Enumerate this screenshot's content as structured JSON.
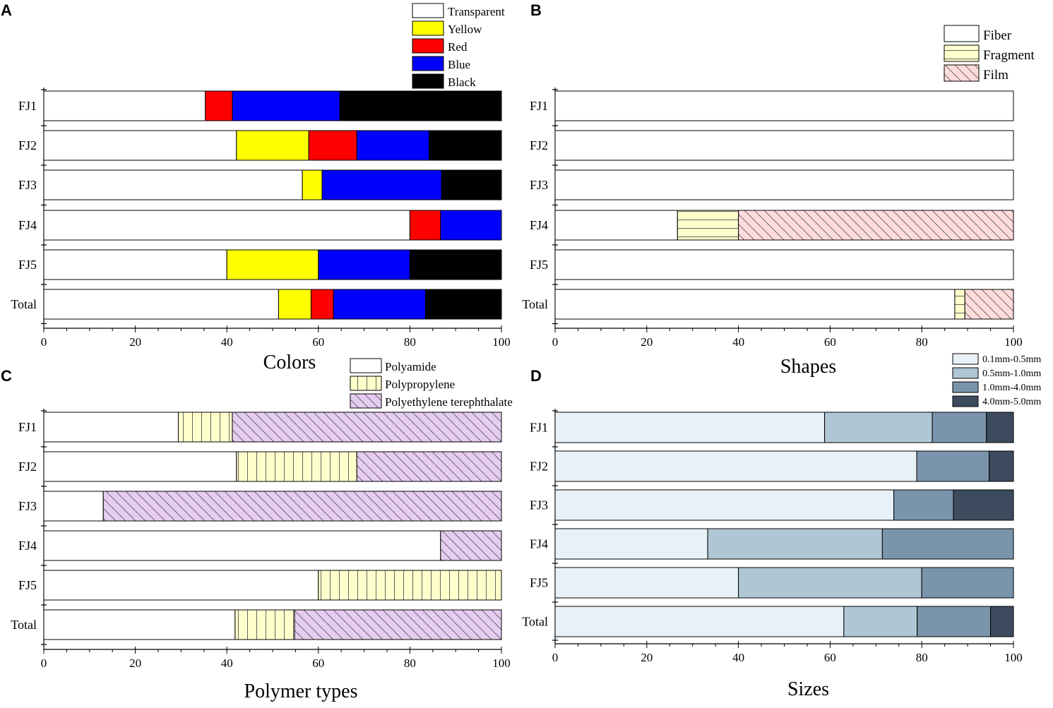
{
  "chart_data": [
    {
      "panel_letter": "A",
      "type": "bar",
      "orientation": "horizontal",
      "stacked": true,
      "xlabel": "Colors",
      "xlim": [
        0,
        100
      ],
      "xticks": [
        "0",
        "20",
        "40",
        "60",
        "80",
        "100"
      ],
      "categories": [
        "FJ1",
        "FJ2",
        "FJ3",
        "FJ4",
        "FJ5",
        "Total"
      ],
      "legend_position": "top-right",
      "series": [
        {
          "name": "Transparent",
          "color": "#ffffff",
          "pattern": "none",
          "values": [
            35.3,
            42.1,
            56.5,
            80.0,
            40.0,
            51.3
          ]
        },
        {
          "name": "Yellow",
          "color": "#ffff00",
          "pattern": "none",
          "values": [
            0,
            15.8,
            4.3,
            0,
            20.0,
            7.1
          ]
        },
        {
          "name": "Red",
          "color": "#ff0000",
          "pattern": "none",
          "values": [
            5.9,
            10.5,
            0,
            6.7,
            0,
            4.9
          ]
        },
        {
          "name": "Blue",
          "color": "#0000ff",
          "pattern": "none",
          "values": [
            23.5,
            15.8,
            26.1,
            13.3,
            20.0,
            20.1
          ]
        },
        {
          "name": "Black",
          "color": "#000000",
          "pattern": "none",
          "values": [
            35.3,
            15.8,
            13.1,
            0,
            20.0,
            16.6
          ]
        }
      ]
    },
    {
      "panel_letter": "B",
      "type": "bar",
      "orientation": "horizontal",
      "stacked": true,
      "xlabel": "Shapes",
      "xlim": [
        0,
        100
      ],
      "xticks": [
        "0",
        "20",
        "40",
        "60",
        "80",
        "100"
      ],
      "categories": [
        "FJ1",
        "FJ2",
        "FJ3",
        "FJ4",
        "FJ5",
        "Total"
      ],
      "legend_position": "top-right",
      "series": [
        {
          "name": "Fiber",
          "color": "#ffffff",
          "pattern": "none",
          "values": [
            100,
            100,
            100,
            26.7,
            100,
            87.2
          ]
        },
        {
          "name": "Fragment",
          "color": "#ffffcc",
          "pattern": "horizontal",
          "values": [
            0,
            0,
            0,
            13.3,
            0,
            2.2
          ]
        },
        {
          "name": "Film",
          "color": "#ffdcdc",
          "pattern": "diagonal",
          "values": [
            0,
            0,
            0,
            60.0,
            0,
            10.6
          ]
        }
      ]
    },
    {
      "panel_letter": "C",
      "type": "bar",
      "orientation": "horizontal",
      "stacked": true,
      "xlabel": "Polymer types",
      "xlim": [
        0,
        100
      ],
      "xticks": [
        "0",
        "20",
        "40",
        "60",
        "80",
        "100"
      ],
      "categories": [
        "FJ1",
        "FJ2",
        "FJ3",
        "FJ4",
        "FJ5",
        "Total"
      ],
      "legend_position": "top-right",
      "series": [
        {
          "name": "Polyamide",
          "color": "#ffffff",
          "pattern": "none",
          "values": [
            29.4,
            42.1,
            13.0,
            86.7,
            60.0,
            41.8
          ]
        },
        {
          "name": "Polypropylene",
          "color": "#ffffcc",
          "pattern": "vertical",
          "values": [
            11.8,
            26.3,
            0,
            0,
            40.0,
            13.0
          ]
        },
        {
          "name": "Polyethylene terephthalate",
          "color": "#e6ccf0",
          "pattern": "diagonal",
          "values": [
            58.8,
            31.6,
            87.0,
            13.3,
            0,
            45.2
          ]
        }
      ]
    },
    {
      "panel_letter": "D",
      "type": "bar",
      "orientation": "horizontal",
      "stacked": true,
      "xlabel": "Sizes",
      "xlim": [
        0,
        100
      ],
      "xticks": [
        "0",
        "20",
        "40",
        "60",
        "80",
        "100"
      ],
      "categories": [
        "FJ1",
        "FJ2",
        "FJ3",
        "FJ4",
        "FJ5",
        "Total"
      ],
      "legend_position": "top-right",
      "series": [
        {
          "name": "0.1mm-0.5mm",
          "color": "#e8f0f8",
          "pattern": "none",
          "values": [
            58.8,
            78.9,
            73.9,
            33.3,
            40.0,
            63.0
          ]
        },
        {
          "name": "0.5mm-1.0mm",
          "color": "#afc6d4",
          "pattern": "none",
          "values": [
            23.5,
            0,
            0,
            38.1,
            40.0,
            16.0
          ]
        },
        {
          "name": "1.0mm-4.0mm",
          "color": "#7a94ac",
          "pattern": "none",
          "values": [
            11.8,
            15.8,
            13.0,
            28.6,
            20.0,
            16.0
          ]
        },
        {
          "name": "4.0mm-5.0mm",
          "color": "#3c4b5e",
          "pattern": "none",
          "values": [
            5.9,
            5.3,
            13.1,
            0,
            0,
            5.0
          ]
        }
      ]
    }
  ]
}
